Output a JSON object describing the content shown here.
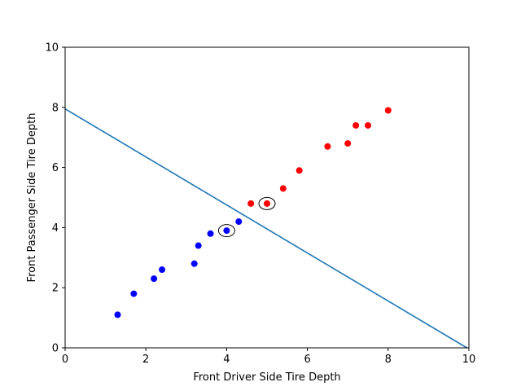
{
  "chart_data": {
    "type": "scatter",
    "title": "",
    "xlabel": "Front Driver Side Tire Depth",
    "ylabel": "Front Passenger Side Tire Depth",
    "xlim": [
      0,
      10
    ],
    "ylim": [
      0,
      10
    ],
    "xticks": [
      0,
      2,
      4,
      6,
      8,
      10
    ],
    "yticks": [
      0,
      2,
      4,
      6,
      8,
      10
    ],
    "grid": false,
    "series": [
      {
        "color": "#0000ff",
        "points": [
          [
            1.3,
            1.1
          ],
          [
            1.7,
            1.8
          ],
          [
            2.2,
            2.3
          ],
          [
            2.4,
            2.6
          ],
          [
            3.2,
            2.8
          ],
          [
            3.3,
            3.4
          ],
          [
            3.6,
            3.8
          ],
          [
            4.0,
            3.9
          ],
          [
            4.3,
            4.2
          ]
        ]
      },
      {
        "color": "#ff0000",
        "points": [
          [
            4.6,
            4.8
          ],
          [
            5.0,
            4.8
          ],
          [
            5.4,
            5.3
          ],
          [
            5.8,
            5.9
          ],
          [
            6.5,
            6.7
          ],
          [
            7.0,
            6.8
          ],
          [
            7.2,
            7.4
          ],
          [
            7.5,
            7.4
          ],
          [
            8.0,
            7.9
          ]
        ]
      }
    ],
    "line": {
      "color": "#1f77b4",
      "points": [
        [
          0,
          7.95
        ],
        [
          9.95,
          0
        ]
      ]
    },
    "highlighted": [
      [
        4.0,
        3.9
      ],
      [
        5.0,
        4.8
      ]
    ]
  }
}
